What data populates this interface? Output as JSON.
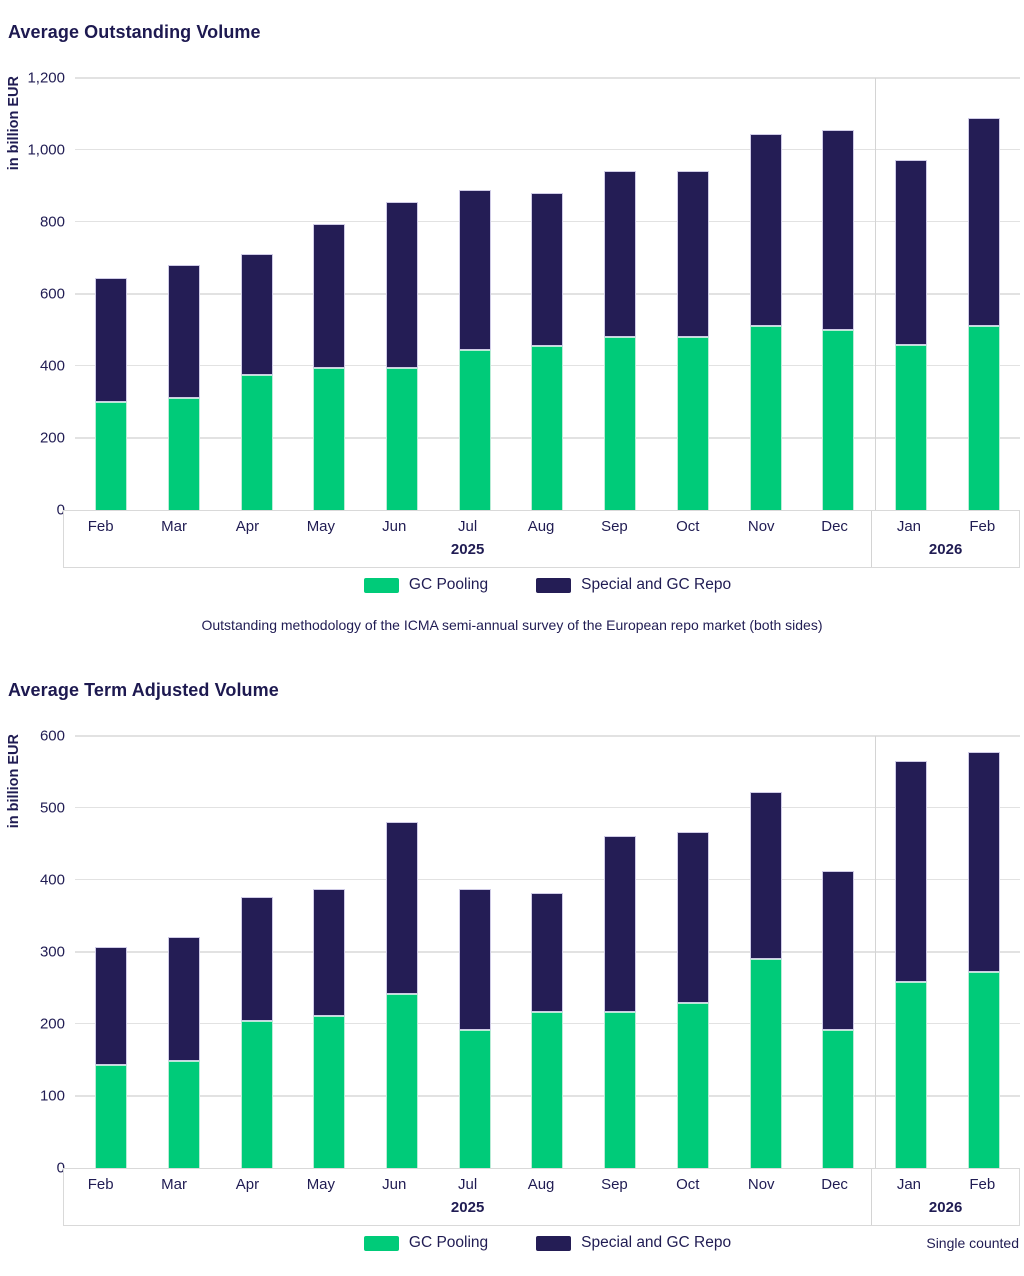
{
  "colors": {
    "text": "#201c53",
    "grid": "#e2e2e2",
    "band_border": "#d9d9d9",
    "separator": "#d4d4d4",
    "gc_pooling_green": "#00cb79",
    "special_repo_navy": "#241d55"
  },
  "chart_data": [
    {
      "type": "bar",
      "stacked": true,
      "title": "Average Outstanding Volume",
      "ylabel": "in billion EUR",
      "ylim": [
        0,
        1200
      ],
      "ytick_step": 200,
      "ytick_labels": [
        "1,200",
        "1,000",
        "800",
        "600",
        "400",
        "200",
        "0"
      ],
      "grid": true,
      "legend_position": "bottom",
      "categories": [
        "Feb",
        "Mar",
        "Apr",
        "May",
        "Jun",
        "Jul",
        "Aug",
        "Sep",
        "Oct",
        "Nov",
        "Dec",
        "Jan",
        "Feb"
      ],
      "year_groups": [
        {
          "label": "2025",
          "span": 11
        },
        {
          "label": "2026",
          "span": 2
        }
      ],
      "series": [
        {
          "name": "GC Pooling",
          "color": "#00cb79",
          "values": [
            300,
            310,
            375,
            395,
            395,
            445,
            456,
            480,
            480,
            510,
            500,
            457,
            510
          ]
        },
        {
          "name": "Special and GC Repo",
          "color": "#241d55",
          "values": [
            345,
            370,
            335,
            400,
            460,
            445,
            424,
            462,
            462,
            535,
            555,
            515,
            578
          ]
        }
      ],
      "footnote": "Outstanding methodology of the ICMA semi-annual survey of the European repo market (both sides)"
    },
    {
      "type": "bar",
      "stacked": true,
      "title": "Average Term Adjusted Volume",
      "ylabel": "in billion EUR",
      "ylim": [
        0,
        600
      ],
      "ytick_step": 100,
      "ytick_labels": [
        "600",
        "500",
        "400",
        "300",
        "200",
        "100",
        "0"
      ],
      "grid": true,
      "legend_position": "bottom",
      "categories": [
        "Feb",
        "Mar",
        "Apr",
        "May",
        "Jun",
        "Jul",
        "Aug",
        "Sep",
        "Oct",
        "Nov",
        "Dec",
        "Jan",
        "Feb"
      ],
      "year_groups": [
        {
          "label": "2025",
          "span": 11
        },
        {
          "label": "2026",
          "span": 2
        }
      ],
      "series": [
        {
          "name": "GC Pooling",
          "color": "#00cb79",
          "values": [
            143,
            149,
            204,
            211,
            241,
            192,
            216,
            217,
            229,
            290,
            192,
            259,
            272
          ]
        },
        {
          "name": "Special and GC Repo",
          "color": "#241d55",
          "values": [
            164,
            172,
            172,
            177,
            239,
            196,
            166,
            244,
            238,
            232,
            220,
            306,
            306
          ]
        }
      ],
      "note_right": "Single counted"
    }
  ]
}
